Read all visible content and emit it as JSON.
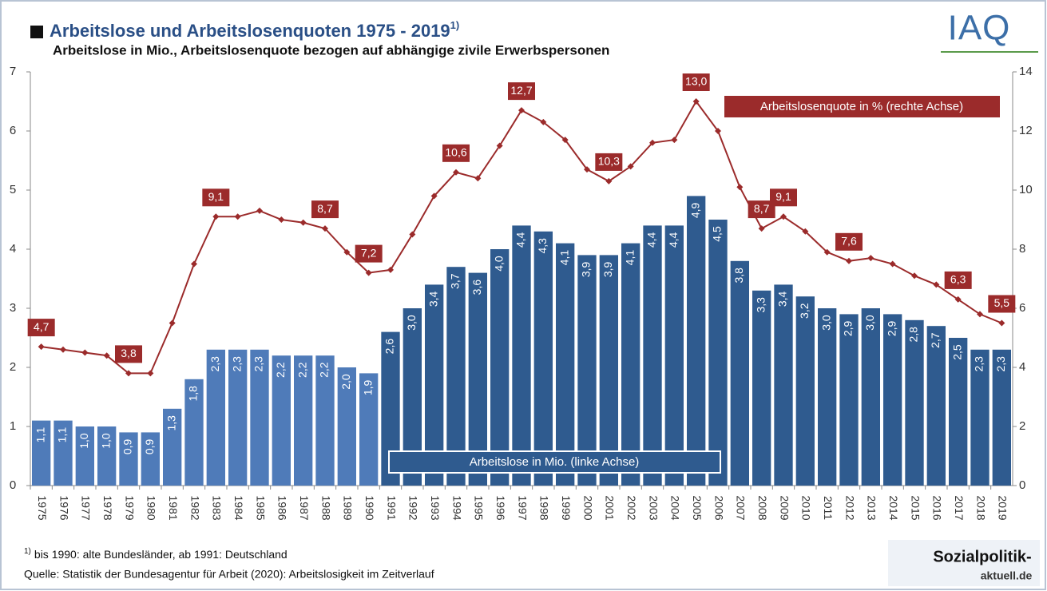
{
  "chart_data": {
    "type": "bar",
    "title": "Arbeitslose und Arbeitslosenquoten 1975 - 2019",
    "title_note": "1)",
    "subtitle": "Arbeitslose in Mio., Arbeitslosenquote bezogen auf abhängige zivile Erwerbspersonen",
    "logo": "IAQ",
    "categories": [
      "1975",
      "1976",
      "1977",
      "1978",
      "1979",
      "1980",
      "1981",
      "1982",
      "1983",
      "1984",
      "1985",
      "1986",
      "1987",
      "1988",
      "1989",
      "1990",
      "1991",
      "1992",
      "1993",
      "1994",
      "1995",
      "1996",
      "1997",
      "1998",
      "1999",
      "2000",
      "2001",
      "2002",
      "2003",
      "2004",
      "2005",
      "2006",
      "2007",
      "2008",
      "2009",
      "2010",
      "2011",
      "2012",
      "2013",
      "2014",
      "2015",
      "2016",
      "2017",
      "2018",
      "2019"
    ],
    "series": [
      {
        "name": "Arbeitslose in Mio. (linke Achse)",
        "type": "bar",
        "colors": [
          "#4f7bb9",
          "#4f7bb9",
          "#4f7bb9",
          "#4f7bb9",
          "#4f7bb9",
          "#4f7bb9",
          "#4f7bb9",
          "#4f7bb9",
          "#4f7bb9",
          "#4f7bb9",
          "#4f7bb9",
          "#4f7bb9",
          "#4f7bb9",
          "#4f7bb9",
          "#4f7bb9",
          "#4f7bb9",
          "#2f5b8f",
          "#2f5b8f",
          "#2f5b8f",
          "#2f5b8f",
          "#2f5b8f",
          "#2f5b8f",
          "#2f5b8f",
          "#2f5b8f",
          "#2f5b8f",
          "#2f5b8f",
          "#2f5b8f",
          "#2f5b8f",
          "#2f5b8f",
          "#2f5b8f",
          "#2f5b8f",
          "#2f5b8f",
          "#2f5b8f",
          "#2f5b8f",
          "#2f5b8f",
          "#2f5b8f",
          "#2f5b8f",
          "#2f5b8f",
          "#2f5b8f",
          "#2f5b8f",
          "#2f5b8f",
          "#2f5b8f",
          "#2f5b8f",
          "#2f5b8f",
          "#2f5b8f"
        ],
        "values": [
          1.1,
          1.1,
          1.0,
          1.0,
          0.9,
          0.9,
          1.3,
          1.8,
          2.3,
          2.3,
          2.3,
          2.2,
          2.2,
          2.2,
          2.0,
          1.9,
          2.6,
          3.0,
          3.4,
          3.7,
          3.6,
          4.0,
          4.4,
          4.3,
          4.1,
          3.9,
          3.9,
          4.1,
          4.4,
          4.4,
          4.9,
          4.5,
          3.8,
          3.3,
          3.4,
          3.2,
          3.0,
          2.9,
          3.0,
          2.9,
          2.8,
          2.7,
          2.5,
          2.3,
          2.3
        ],
        "value_labels": [
          "1,1",
          "1,1",
          "1,0",
          "1,0",
          "0,9",
          "0,9",
          "1,3",
          "1,8",
          "2,3",
          "2,3",
          "2,3",
          "2,2",
          "2,2",
          "2,2",
          "2,0",
          "1,9",
          "2,6",
          "3,0",
          "3,4",
          "3,7",
          "3,6",
          "4,0",
          "4,4",
          "4,3",
          "4,1",
          "3,9",
          "3,9",
          "4,1",
          "4,4",
          "4,4",
          "4,9",
          "4,5",
          "3,8",
          "3,3",
          "3,4",
          "3,2",
          "3,0",
          "2,9",
          "3,0",
          "2,9",
          "2,8",
          "2,7",
          "2,5",
          "2,3",
          "2,3"
        ]
      },
      {
        "name": "Arbeitslosenquote in % (rechte Achse)",
        "type": "line",
        "axis": "y2",
        "color": "#9b2b2b",
        "values": [
          4.7,
          4.6,
          4.5,
          4.4,
          3.8,
          3.8,
          5.5,
          7.5,
          9.1,
          9.1,
          9.3,
          9.0,
          8.9,
          8.7,
          7.9,
          7.2,
          7.3,
          8.5,
          9.8,
          10.6,
          10.4,
          11.5,
          12.7,
          12.3,
          11.7,
          10.7,
          10.3,
          10.8,
          11.6,
          11.7,
          13.0,
          12.0,
          10.1,
          8.7,
          9.1,
          8.6,
          7.9,
          7.6,
          7.7,
          7.5,
          7.1,
          6.8,
          6.3,
          5.8,
          5.5
        ],
        "value_labels": [
          "4,7",
          null,
          null,
          null,
          "3,8",
          null,
          null,
          null,
          "9,1",
          null,
          null,
          null,
          null,
          "8,7",
          null,
          "7,2",
          null,
          null,
          null,
          "10,6",
          null,
          null,
          "12,7",
          null,
          null,
          null,
          "10,3",
          null,
          null,
          null,
          "13,0",
          null,
          null,
          "8,7",
          "9,1",
          null,
          null,
          "7,6",
          null,
          null,
          null,
          null,
          "6,3",
          null,
          "5,5"
        ]
      }
    ],
    "ylim": [
      0,
      7
    ],
    "yticks": [
      0,
      1,
      2,
      3,
      4,
      5,
      6,
      7
    ],
    "y2lim": [
      0,
      14
    ],
    "y2ticks": [
      0,
      2,
      4,
      6,
      8,
      10,
      12,
      14
    ],
    "footnote_mark": "1)",
    "footnote": "bis 1990: alte Bundesländer, ab 1991: Deutschland",
    "source": "Quelle: Statistik der Bundesagentur für Arbeit (2020): Arbeitslosigkeit im Zeitverlauf",
    "logo2": [
      "Sozialpolitik-",
      "aktuell.de"
    ]
  }
}
